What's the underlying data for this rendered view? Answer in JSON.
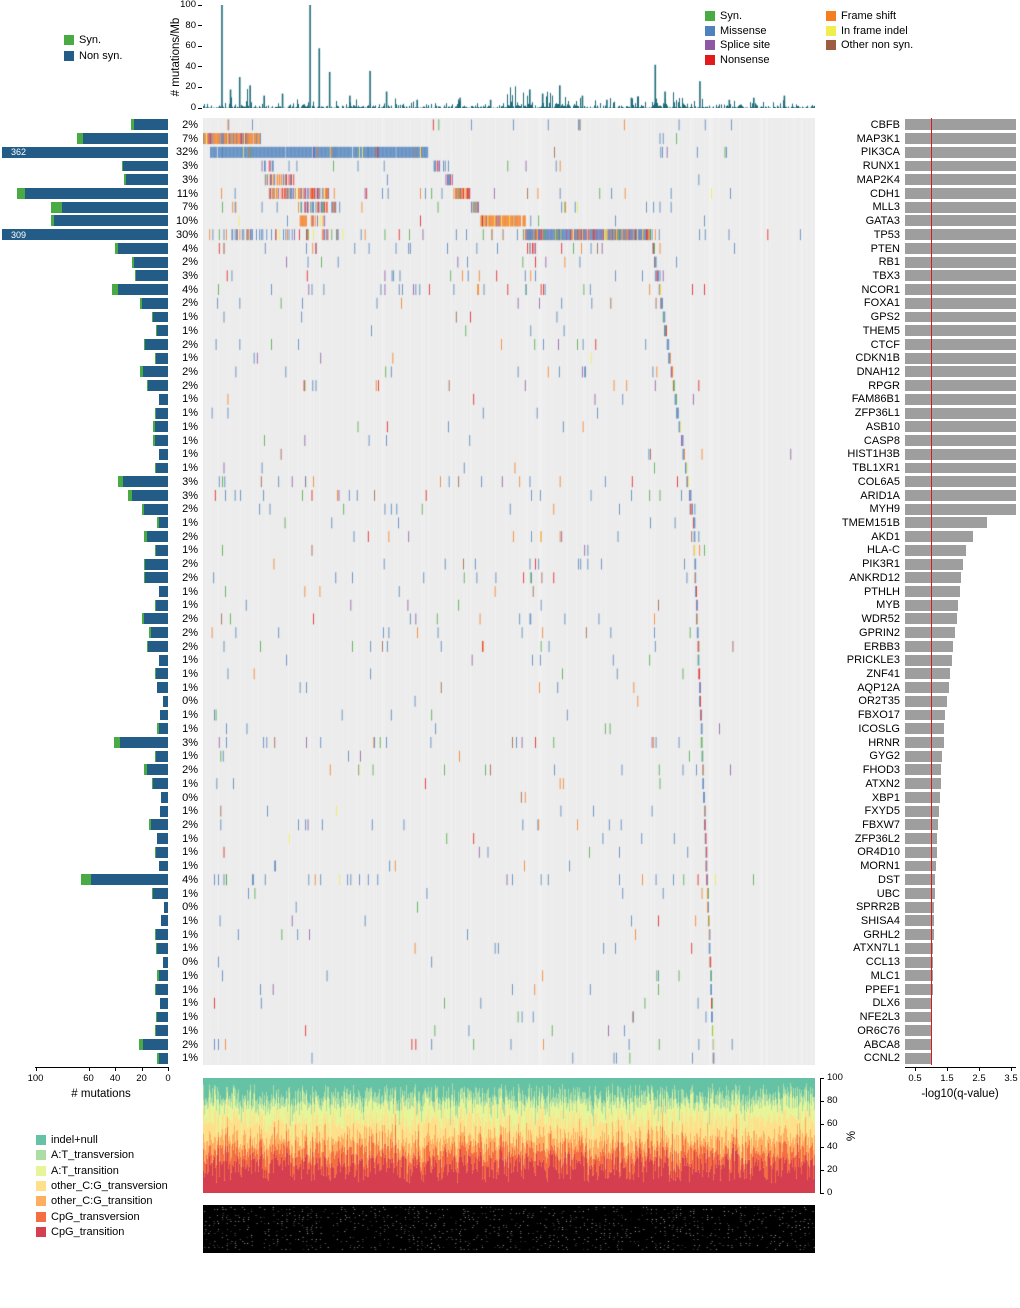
{
  "figure": {
    "bg": "#ffffff",
    "panel_bg": "#ececec"
  },
  "colors": {
    "syn": "#4aaa43",
    "missense": "#4f82bd",
    "splice_site": "#8d58a4",
    "nonsense": "#e31a1c",
    "frame_shift": "#f57e21",
    "in_frame_indel": "#f0ee4e",
    "other_non_syn": "#9e5c43",
    "non_syn": "#235c87",
    "rate_bar": "#1f6b7a",
    "qbar": "#9e9e9e",
    "threshold": "#d51e1c"
  },
  "legends": {
    "bar_legend": [
      {
        "label": "Syn.",
        "color": "#4aaa43"
      },
      {
        "label": "Non syn.",
        "color": "#235c87"
      }
    ],
    "type_legend_col1": [
      {
        "label": "Syn.",
        "color": "#4aaa43"
      },
      {
        "label": "Missense",
        "color": "#4f82bd"
      },
      {
        "label": "Splice site",
        "color": "#8d58a4"
      },
      {
        "label": "Nonsense",
        "color": "#e31a1c"
      }
    ],
    "type_legend_col2": [
      {
        "label": "Frame shift",
        "color": "#f57e21"
      },
      {
        "label": "In frame indel",
        "color": "#f0ee4e"
      },
      {
        "label": "Other non syn.",
        "color": "#9e5c43"
      }
    ]
  },
  "chart_data": {
    "type": "heatmap",
    "title": "Significantly mutated genes mutation landscape (oncoprint with marginal bar charts)",
    "n_samples_approx": 772,
    "top_rate_panel": {
      "type": "bar",
      "ylabel": "# mutations/Mb",
      "ylim": [
        0,
        100
      ],
      "yticks": [
        0,
        20,
        40,
        60,
        80,
        100
      ],
      "spikes": [
        [
          0.031,
          100
        ],
        [
          0.045,
          18
        ],
        [
          0.06,
          30
        ],
        [
          0.077,
          22
        ],
        [
          0.1,
          12
        ],
        [
          0.13,
          14
        ],
        [
          0.175,
          140
        ],
        [
          0.19,
          58
        ],
        [
          0.207,
          35
        ],
        [
          0.24,
          12
        ],
        [
          0.273,
          36
        ],
        [
          0.3,
          16
        ],
        [
          0.35,
          8
        ],
        [
          0.42,
          10
        ],
        [
          0.47,
          8
        ],
        [
          0.534,
          18
        ],
        [
          0.555,
          14
        ],
        [
          0.583,
          22
        ],
        [
          0.62,
          12
        ],
        [
          0.66,
          8
        ],
        [
          0.7,
          10
        ],
        [
          0.739,
          42
        ],
        [
          0.755,
          16
        ],
        [
          0.812,
          26
        ],
        [
          0.86,
          8
        ],
        [
          0.9,
          10
        ],
        [
          0.95,
          12
        ]
      ]
    },
    "left_bar_panel": {
      "type": "bar",
      "xlabel": "# mutations",
      "xticks": [
        100,
        60,
        40,
        20,
        0
      ],
      "overflow_labels": {
        "PIK3CA": "362",
        "TP53": "309"
      }
    },
    "qvalue_panel": {
      "type": "bar",
      "xlabel": "-log10(q-value)",
      "xticks": [
        0.5,
        1.5,
        2.5,
        3.5
      ],
      "threshold_line": 1.0
    },
    "spectrum_panel": {
      "type": "area",
      "ylabel": "%",
      "yticks": [
        0,
        20,
        40,
        60,
        80,
        100
      ],
      "categories": [
        {
          "label": "indel+null",
          "color": "#66c2a5",
          "mean": 0.15
        },
        {
          "label": "A:T_transversion",
          "color": "#abdda4",
          "mean": 0.08
        },
        {
          "label": "A:T_transition",
          "color": "#e6f598",
          "mean": 0.14
        },
        {
          "label": "other_C:G_transversion",
          "color": "#fee08b",
          "mean": 0.16
        },
        {
          "label": "other_C:G_transition",
          "color": "#fdae61",
          "mean": 0.11
        },
        {
          "label": "CpG_transversion",
          "color": "#f46d43",
          "mean": 0.12
        },
        {
          "label": "CpG_transition",
          "color": "#d53e4f",
          "mean": 0.24
        }
      ]
    },
    "mixes": {
      "default": {
        "missense": 0.5,
        "syn": 0.13,
        "frame_shift": 0.12,
        "nonsense": 0.09,
        "splice_site": 0.08,
        "other_non_syn": 0.05,
        "in_frame_indel": 0.03
      },
      "fs_heavy": {
        "frame_shift": 0.62,
        "missense": 0.12,
        "splice_site": 0.08,
        "nonsense": 0.08,
        "in_frame_indel": 0.06,
        "other_non_syn": 0.04
      },
      "mis_solid": {
        "missense": 0.96,
        "other_non_syn": 0.02,
        "in_frame_indel": 0.02
      },
      "mixed_trunc": {
        "frame_shift": 0.45,
        "nonsense": 0.2,
        "missense": 0.2,
        "splice_site": 0.08,
        "in_frame_indel": 0.07
      },
      "tp53_block": {
        "missense": 0.55,
        "nonsense": 0.12,
        "frame_shift": 0.12,
        "splice_site": 0.12,
        "in_frame_indel": 0.04,
        "other_non_syn": 0.05
      },
      "gata3_block": {
        "frame_shift": 0.75,
        "splice_site": 0.15,
        "in_frame_indel": 0.1
      },
      "mis_mix": {
        "missense": 0.6,
        "splice_site": 0.2,
        "nonsense": 0.2
      }
    },
    "hot_columns": [
      0.031,
      0.175,
      0.3,
      0.53,
      0.555,
      0.583,
      0.62,
      0.739,
      0.812
    ],
    "genes": [
      {
        "n": "CBFB",
        "l": "2%",
        "v": 2,
        "m": 26,
        "s": 2,
        "q": 3.65
      },
      {
        "n": "MAP3K1",
        "l": "7%",
        "v": 7,
        "m": 64,
        "s": 5,
        "q": 3.65,
        "b": [
          {
            "f": 0.0,
            "t": 0.094,
            "d": 0.97,
            "x": "fs_heavy"
          }
        ]
      },
      {
        "n": "PIK3CA",
        "l": "32%",
        "v": 32,
        "m": 354,
        "s": 8,
        "q": 3.65,
        "ov": "362",
        "b": [
          {
            "f": 0.012,
            "t": 0.368,
            "d": 0.985,
            "x": "mis_solid"
          }
        ]
      },
      {
        "n": "RUNX1",
        "l": "3%",
        "v": 3,
        "m": 34,
        "s": 1,
        "q": 3.65,
        "b": [
          {
            "f": 0.095,
            "t": 0.118,
            "d": 0.5,
            "x": "mis_mix"
          },
          {
            "f": 0.378,
            "t": 0.397,
            "d": 0.7,
            "x": "mis_mix"
          }
        ]
      },
      {
        "n": "MAP2K4",
        "l": "3%",
        "v": 3,
        "m": 32,
        "s": 1,
        "q": 3.65,
        "b": [
          {
            "f": 0.096,
            "t": 0.15,
            "d": 0.5,
            "x": "mixed_trunc"
          },
          {
            "f": 0.397,
            "t": 0.41,
            "d": 0.6,
            "x": "mis_mix"
          }
        ]
      },
      {
        "n": "CDH1",
        "l": "11%",
        "v": 11,
        "m": 108,
        "s": 6,
        "q": 3.65,
        "b": [
          {
            "f": 0.108,
            "t": 0.208,
            "d": 0.6,
            "x": "mixed_trunc"
          },
          {
            "f": 0.41,
            "t": 0.437,
            "d": 0.75,
            "x": "mixed_trunc"
          }
        ]
      },
      {
        "n": "MLL3",
        "l": "7%",
        "v": 7,
        "m": 80,
        "s": 8,
        "q": 3.65,
        "b": [
          {
            "f": 0.155,
            "t": 0.225,
            "d": 0.45,
            "x": "default"
          },
          {
            "f": 0.437,
            "t": 0.452,
            "d": 0.8,
            "x": "default"
          }
        ]
      },
      {
        "n": "GATA3",
        "l": "10%",
        "v": 10,
        "m": 86,
        "s": 2,
        "q": 3.65,
        "b": [
          {
            "f": 0.158,
            "t": 0.2,
            "d": 0.55,
            "x": "gata3_block"
          },
          {
            "f": 0.454,
            "t": 0.528,
            "d": 0.97,
            "x": "gata3_block"
          }
        ]
      },
      {
        "n": "TP53",
        "l": "30%",
        "v": 30,
        "m": 302,
        "s": 7,
        "q": 3.65,
        "ov": "309",
        "b": [
          {
            "f": 0.045,
            "t": 0.23,
            "d": 0.22,
            "x": "tp53_block"
          },
          {
            "f": 0.527,
            "t": 0.733,
            "d": 0.97,
            "x": "tp53_block"
          }
        ]
      },
      {
        "n": "PTEN",
        "l": "4%",
        "v": 4,
        "m": 38,
        "s": 2,
        "q": 3.65,
        "b": [
          {
            "f": 0.528,
            "t": 0.544,
            "d": 0.55,
            "x": "mixed_trunc"
          }
        ]
      },
      {
        "n": "RB1",
        "l": "2%",
        "v": 2,
        "m": 26,
        "s": 1,
        "q": 3.65
      },
      {
        "n": "TBX3",
        "l": "3%",
        "v": 3,
        "m": 24,
        "s": 1,
        "q": 3.65
      },
      {
        "n": "NCOR1",
        "l": "4%",
        "v": 4,
        "m": 38,
        "s": 4,
        "q": 3.65
      },
      {
        "n": "FOXA1",
        "l": "2%",
        "v": 2,
        "m": 20,
        "s": 1,
        "q": 3.65
      },
      {
        "n": "GPS2",
        "l": "1%",
        "v": 1,
        "m": 11,
        "s": 1,
        "q": 3.65
      },
      {
        "n": "THEM5",
        "l": "1%",
        "v": 1,
        "m": 8,
        "s": 1,
        "q": 3.65
      },
      {
        "n": "CTCF",
        "l": "2%",
        "v": 2,
        "m": 17,
        "s": 1,
        "q": 3.65
      },
      {
        "n": "CDKN1B",
        "l": "1%",
        "v": 1,
        "m": 9,
        "s": 1,
        "q": 3.65
      },
      {
        "n": "DNAH12",
        "l": "2%",
        "v": 2,
        "m": 19,
        "s": 2,
        "q": 3.65
      },
      {
        "n": "RPGR",
        "l": "2%",
        "v": 2,
        "m": 15,
        "s": 1,
        "q": 3.65
      },
      {
        "n": "FAM86B1",
        "l": "1%",
        "v": 1,
        "m": 7,
        "s": 0,
        "q": 3.65
      },
      {
        "n": "ZFP36L1",
        "l": "1%",
        "v": 1,
        "m": 9,
        "s": 1,
        "q": 3.65
      },
      {
        "n": "ASB10",
        "l": "1%",
        "v": 1,
        "m": 10,
        "s": 1,
        "q": 3.65
      },
      {
        "n": "CASP8",
        "l": "1%",
        "v": 1,
        "m": 10,
        "s": 1,
        "q": 3.65
      },
      {
        "n": "HIST1H3B",
        "l": "1%",
        "v": 1,
        "m": 7,
        "s": 0,
        "q": 3.65
      },
      {
        "n": "TBL1XR1",
        "l": "1%",
        "v": 1,
        "m": 9,
        "s": 1,
        "q": 3.65
      },
      {
        "n": "COL6A5",
        "l": "3%",
        "v": 3,
        "m": 34,
        "s": 4,
        "q": 3.65
      },
      {
        "n": "ARID1A",
        "l": "3%",
        "v": 3,
        "m": 27,
        "s": 3,
        "q": 3.65
      },
      {
        "n": "MYH9",
        "l": "2%",
        "v": 2,
        "m": 18,
        "s": 2,
        "q": 3.65
      },
      {
        "n": "TMEM151B",
        "l": "1%",
        "v": 1,
        "m": 7,
        "s": 1,
        "q": 2.75
      },
      {
        "n": "AKD1",
        "l": "2%",
        "v": 2,
        "m": 16,
        "s": 2,
        "q": 2.3
      },
      {
        "n": "HLA-C",
        "l": "1%",
        "v": 1,
        "m": 9,
        "s": 1,
        "q": 2.1
      },
      {
        "n": "PIK3R1",
        "l": "2%",
        "v": 2,
        "m": 17,
        "s": 1,
        "q": 2.0
      },
      {
        "n": "ANKRD12",
        "l": "2%",
        "v": 2,
        "m": 17,
        "s": 1,
        "q": 1.95
      },
      {
        "n": "PTHLH",
        "l": "1%",
        "v": 1,
        "m": 7,
        "s": 0,
        "q": 1.9
      },
      {
        "n": "MYB",
        "l": "1%",
        "v": 1,
        "m": 9,
        "s": 1,
        "q": 1.85
      },
      {
        "n": "WDR52",
        "l": "2%",
        "v": 2,
        "m": 18,
        "s": 2,
        "q": 1.8
      },
      {
        "n": "GPRIN2",
        "l": "2%",
        "v": 2,
        "m": 13,
        "s": 1,
        "q": 1.75
      },
      {
        "n": "ERBB3",
        "l": "2%",
        "v": 2,
        "m": 15,
        "s": 1,
        "q": 1.7
      },
      {
        "n": "PRICKLE3",
        "l": "1%",
        "v": 1,
        "m": 7,
        "s": 0,
        "q": 1.65
      },
      {
        "n": "ZNF41",
        "l": "1%",
        "v": 1,
        "m": 9,
        "s": 1,
        "q": 1.6
      },
      {
        "n": "AQP12A",
        "l": "1%",
        "v": 1,
        "m": 8,
        "s": 0,
        "q": 1.55
      },
      {
        "n": "OR2T35",
        "l": "0%",
        "v": 0.5,
        "m": 4,
        "s": 0,
        "q": 1.5
      },
      {
        "n": "FBXO17",
        "l": "1%",
        "v": 1,
        "m": 6,
        "s": 0,
        "q": 1.45
      },
      {
        "n": "ICOSLG",
        "l": "1%",
        "v": 1,
        "m": 7,
        "s": 1,
        "q": 1.42
      },
      {
        "n": "HRNR",
        "l": "3%",
        "v": 3,
        "m": 36,
        "s": 5,
        "q": 1.4
      },
      {
        "n": "GYG2",
        "l": "1%",
        "v": 1,
        "m": 9,
        "s": 1,
        "q": 1.35
      },
      {
        "n": "FHOD3",
        "l": "2%",
        "v": 2,
        "m": 16,
        "s": 2,
        "q": 1.32
      },
      {
        "n": "ATXN2",
        "l": "1%",
        "v": 1,
        "m": 11,
        "s": 1,
        "q": 1.3
      },
      {
        "n": "XBP1",
        "l": "0%",
        "v": 0.5,
        "m": 5,
        "s": 0,
        "q": 1.28
      },
      {
        "n": "FXYD5",
        "l": "1%",
        "v": 1,
        "m": 6,
        "s": 0,
        "q": 1.25
      },
      {
        "n": "FBXW7",
        "l": "2%",
        "v": 2,
        "m": 13,
        "s": 1,
        "q": 1.22
      },
      {
        "n": "ZFP36L2",
        "l": "1%",
        "v": 1,
        "m": 8,
        "s": 0,
        "q": 1.2
      },
      {
        "n": "OR4D10",
        "l": "1%",
        "v": 1,
        "m": 9,
        "s": 1,
        "q": 1.18
      },
      {
        "n": "MORN1",
        "l": "1%",
        "v": 1,
        "m": 7,
        "s": 0,
        "q": 1.15
      },
      {
        "n": "DST",
        "l": "4%",
        "v": 4,
        "m": 58,
        "s": 8,
        "q": 1.13
      },
      {
        "n": "UBC",
        "l": "1%",
        "v": 1,
        "m": 11,
        "s": 1,
        "q": 1.12
      },
      {
        "n": "SPRR2B",
        "l": "0%",
        "v": 0.5,
        "m": 3,
        "s": 0,
        "q": 1.1
      },
      {
        "n": "SHISA4",
        "l": "1%",
        "v": 1,
        "m": 5,
        "s": 0,
        "q": 1.09
      },
      {
        "n": "GRHL2",
        "l": "1%",
        "v": 1,
        "m": 9,
        "s": 1,
        "q": 1.08
      },
      {
        "n": "ATXN7L1",
        "l": "1%",
        "v": 1,
        "m": 8,
        "s": 1,
        "q": 1.07
      },
      {
        "n": "CCL13",
        "l": "0%",
        "v": 0.5,
        "m": 4,
        "s": 0,
        "q": 1.06
      },
      {
        "n": "MLC1",
        "l": "1%",
        "v": 1,
        "m": 7,
        "s": 1,
        "q": 1.05
      },
      {
        "n": "PPEF1",
        "l": "1%",
        "v": 1,
        "m": 9,
        "s": 1,
        "q": 1.05
      },
      {
        "n": "DLX6",
        "l": "1%",
        "v": 1,
        "m": 6,
        "s": 0,
        "q": 1.04
      },
      {
        "n": "NFE2L3",
        "l": "1%",
        "v": 1,
        "m": 8,
        "s": 1,
        "q": 1.04
      },
      {
        "n": "OR6C76",
        "l": "1%",
        "v": 1,
        "m": 9,
        "s": 1,
        "q": 1.03
      },
      {
        "n": "ABCA8",
        "l": "2%",
        "v": 2,
        "m": 19,
        "s": 3,
        "q": 1.03
      },
      {
        "n": "CCNL2",
        "l": "1%",
        "v": 1,
        "m": 7,
        "s": 1,
        "q": 1.02
      }
    ]
  }
}
